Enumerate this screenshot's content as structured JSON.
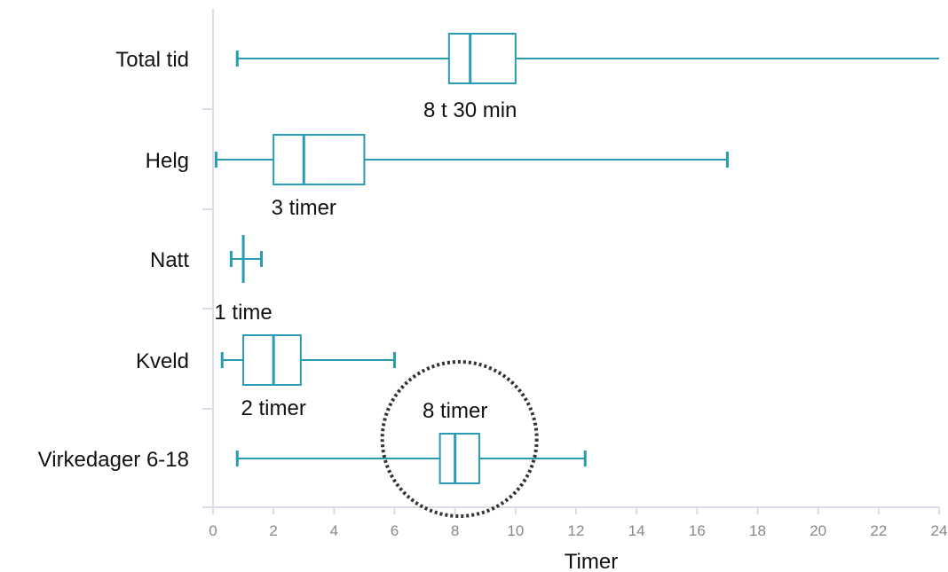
{
  "chart_data": {
    "type": "boxplot",
    "xlabel": "Timer",
    "xlim": [
      0,
      24
    ],
    "xticks": [
      0,
      2,
      4,
      6,
      8,
      10,
      12,
      14,
      16,
      18,
      20,
      22,
      24
    ],
    "grid": false,
    "series_color": "#2a9bb5",
    "axis_color": "#d9dde6",
    "highlight": {
      "category": "Virkedager 6-18",
      "style": "dotted circle",
      "color": "#333333"
    },
    "categories": [
      "Total tid",
      "Helg",
      "Natt",
      "Kveld",
      "Virkedager 6-18"
    ],
    "boxes": [
      {
        "category": "Total tid",
        "min": 0.8,
        "q1": 7.8,
        "median": 8.5,
        "q3": 10.0,
        "max": 24,
        "label": "8 t 30 min"
      },
      {
        "category": "Helg",
        "min": 0.1,
        "q1": 2.0,
        "median": 3.0,
        "q3": 5.0,
        "max": 17.0,
        "label": "3 timer"
      },
      {
        "category": "Natt",
        "min": 0.6,
        "q1": 1.0,
        "median": 1.0,
        "q3": 1.0,
        "max": 1.6,
        "label": "1 time"
      },
      {
        "category": "Kveld",
        "min": 0.3,
        "q1": 1.0,
        "median": 2.0,
        "q3": 2.9,
        "max": 6.0,
        "label": "2 timer"
      },
      {
        "category": "Virkedager 6-18",
        "min": 0.8,
        "q1": 7.5,
        "median": 8.0,
        "q3": 8.8,
        "max": 12.3,
        "label": "8 timer"
      }
    ]
  }
}
